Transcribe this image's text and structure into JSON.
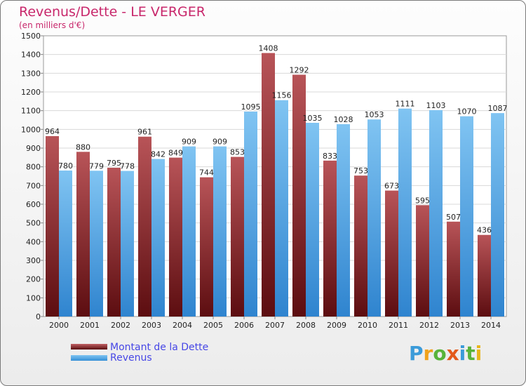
{
  "title": "Revenus/Dette - LE VERGER",
  "subtitle": "(en milliers d'€)",
  "legend": {
    "debt_label": "Montant de la Dette",
    "revenue_label": "Revenus"
  },
  "logo": {
    "text": "Proxiti",
    "letters": [
      "P",
      "r",
      "o",
      "x",
      "i",
      "t",
      "i"
    ],
    "colors": [
      "#3b9bd9",
      "#f0a21b",
      "#58b33a",
      "#e35a1c",
      "#3b9bd9",
      "#58b33a",
      "#e8b51a"
    ]
  },
  "colors": {
    "debt_top": "#b85458",
    "debt_bottom": "#5c0d10",
    "revenue_top": "#80c4f2",
    "revenue_bottom": "#2f84cf",
    "title": "#c8276b",
    "legend_text": "#4747e6"
  },
  "chart_data": {
    "type": "bar",
    "title": "Revenus/Dette - LE VERGER",
    "subtitle": "(en milliers d'€)",
    "categories": [
      "2000",
      "2001",
      "2002",
      "2003",
      "2004",
      "2005",
      "2006",
      "2007",
      "2008",
      "2009",
      "2010",
      "2011",
      "2012",
      "2013",
      "2014"
    ],
    "series": [
      {
        "name": "Montant de la Dette",
        "values": [
          964,
          880,
          795,
          961,
          849,
          744,
          853,
          1408,
          1292,
          833,
          753,
          673,
          595,
          507,
          436
        ]
      },
      {
        "name": "Revenus",
        "values": [
          780,
          779,
          778,
          842,
          909,
          909,
          1095,
          1156,
          1035,
          1028,
          1053,
          1111,
          1103,
          1070,
          1087
        ]
      }
    ],
    "ylim": [
      0,
      1500
    ],
    "yticks": [
      0,
      100,
      200,
      300,
      400,
      500,
      600,
      700,
      800,
      900,
      1000,
      1100,
      1200,
      1300,
      1400,
      1500
    ],
    "grid": true,
    "legend_position": "bottom-left"
  }
}
